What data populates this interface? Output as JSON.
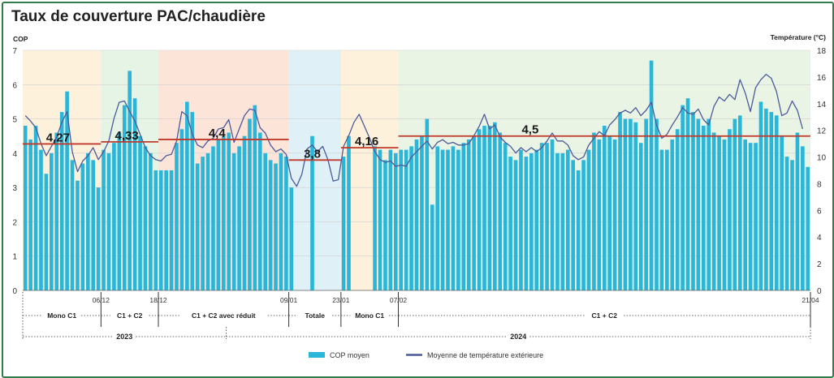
{
  "title": "Taux de couverture PAC/chaudière",
  "colors": {
    "frame": "#2e7d4a",
    "bar": "#29b6d8",
    "line": "#4b5a9a",
    "mean_line": "#c0392b",
    "period_fills": [
      "#fdf1dc",
      "#e6f4e6",
      "#fde4d9",
      "#dff1f6",
      "#fdf1dc",
      "#eaf4e4"
    ]
  },
  "chart_data": {
    "type": "bar",
    "ylabel_left": "COP",
    "ylabel_right": "Température (°C)",
    "ylim_left": [
      0,
      7
    ],
    "ylim_right": [
      0,
      18
    ],
    "yticks_left": [
      "0",
      "1",
      "2",
      "3",
      "4",
      "5",
      "6",
      "7"
    ],
    "yticks_right": [
      "0",
      "2",
      "4",
      "6",
      "8",
      "10",
      "12",
      "14",
      "16",
      "18"
    ],
    "grid": true,
    "legend_position": "bottom-center",
    "series": [
      {
        "name": "COP moyen",
        "type": "bar",
        "values": [
          4.8,
          4.4,
          4.8,
          4.1,
          3.4,
          4.0,
          4.6,
          5.2,
          5.8,
          3.8,
          3.2,
          3.7,
          4.0,
          3.8,
          3.0,
          4.1,
          4.0,
          4.3,
          4.6,
          5.4,
          6.4,
          5.6,
          4.5,
          4.2,
          4.0,
          3.5,
          3.5,
          3.5,
          3.5,
          4.3,
          4.7,
          5.5,
          5.2,
          3.7,
          3.9,
          4.0,
          4.2,
          4.4,
          4.5,
          4.6,
          4.0,
          4.2,
          4.5,
          5.0,
          5.4,
          4.6,
          4.0,
          3.8,
          3.7,
          4.0,
          3.9,
          3.0,
          null,
          null,
          null,
          4.5,
          null,
          null,
          null,
          null,
          null,
          3.9,
          4.5,
          null,
          null,
          null,
          null,
          4.2,
          4.1,
          3.8,
          4.1,
          4.0,
          4.1,
          4.1,
          4.2,
          4.4,
          4.5,
          5.0,
          2.5,
          4.2,
          4.1,
          4.1,
          4.2,
          4.1,
          4.3,
          4.4,
          4.5,
          4.7,
          4.8,
          4.8,
          4.9,
          4.6,
          4.3,
          3.9,
          3.8,
          4.1,
          3.9,
          4.0,
          4.1,
          4.3,
          4.3,
          4.4,
          4.0,
          4.0,
          4.1,
          3.8,
          3.5,
          3.8,
          4.1,
          4.6,
          4.4,
          4.8,
          4.5,
          4.4,
          5.2,
          5.0,
          5.0,
          4.9,
          4.3,
          5.0,
          6.7,
          5.0,
          4.1,
          4.1,
          4.4,
          4.7,
          5.4,
          5.6,
          5.2,
          5.0,
          4.8,
          5.0,
          4.6,
          4.5,
          4.4,
          4.7,
          5.0,
          5.1,
          4.4,
          4.3,
          4.3,
          5.5,
          5.3,
          5.2,
          5.1,
          4.5,
          3.9,
          3.8,
          4.6,
          4.2,
          3.6
        ]
      },
      {
        "name": "Moyenne de température extérieure",
        "type": "line",
        "values": [
          13.1,
          12.7,
          12.2,
          11.0,
          10.1,
          10.8,
          11.5,
          12.6,
          13.4,
          10.4,
          8.9,
          9.7,
          10.1,
          10.7,
          9.8,
          10.4,
          11.2,
          12.9,
          14.1,
          14.2,
          13.4,
          12.7,
          11.7,
          10.7,
          10.1,
          9.8,
          9.7,
          10.1,
          10.2,
          11.2,
          13.4,
          13.1,
          11.7,
          10.9,
          10.7,
          11.2,
          11.4,
          12.1,
          12.2,
          12.8,
          11.1,
          12.1,
          13.1,
          13.6,
          13.5,
          12.2,
          11.8,
          10.9,
          10.4,
          10.6,
          10.2,
          8.4,
          7.8,
          8.7,
          10.6,
          10.9,
          10.4,
          10.8,
          9.8,
          8.2,
          8.3,
          10.8,
          11.6,
          12.6,
          13.2,
          12.3,
          11.4,
          10.4,
          9.8,
          9.6,
          9.7,
          9.3,
          9.4,
          9.3,
          10.0,
          10.4,
          10.8,
          11.2,
          10.6,
          11.1,
          11.3,
          11.0,
          11.1,
          10.9,
          10.9,
          11.0,
          11.6,
          12.3,
          13.2,
          12.1,
          12.4,
          11.5,
          11.1,
          10.8,
          10.3,
          10.7,
          10.4,
          10.7,
          10.4,
          10.7,
          11.2,
          11.8,
          11.2,
          11.2,
          10.9,
          10.1,
          9.8,
          10.0,
          10.9,
          11.4,
          11.9,
          11.6,
          12.4,
          12.8,
          13.3,
          13.5,
          13.3,
          13.7,
          13.1,
          13.5,
          14.1,
          12.4,
          11.4,
          11.7,
          12.4,
          13.0,
          13.7,
          13.3,
          13.2,
          13.6,
          12.8,
          12.4,
          13.8,
          14.5,
          14.2,
          14.7,
          14.3,
          15.8,
          14.8,
          13.4,
          15.2,
          15.8,
          16.2,
          15.9,
          14.9,
          13.1,
          13.3,
          14.2,
          13.5,
          12.1
        ]
      }
    ],
    "mean_cop_values": [
      "4,27",
      "4,33",
      "4,4",
      "3,8",
      "4,16",
      "4,5"
    ],
    "mean_cop_numbers": [
      4.27,
      4.33,
      4.4,
      3.8,
      4.16,
      4.5
    ],
    "period_labels": [
      "Mono C1",
      "C1 + C2",
      "C1 + C2 avec réduit",
      "Totale",
      "Mono C1",
      "C1 + C2"
    ],
    "period_bar_ranges": [
      [
        0,
        14
      ],
      [
        15,
        25
      ],
      [
        26,
        50
      ],
      [
        51,
        60
      ],
      [
        61,
        71
      ],
      [
        72,
        150
      ]
    ],
    "date_labels": [
      "06/12",
      "18/12",
      "09/01",
      "23/01",
      "07/02",
      "21/04"
    ],
    "date_bar_indices": [
      14.5,
      25.5,
      50.5,
      60.5,
      71.5,
      150.5
    ],
    "years": [
      "2023",
      "2024"
    ],
    "year_split_index": 38.5
  },
  "legend": {
    "bar_label": "COP moyen",
    "line_label": "Moyenne de température extérieure"
  }
}
